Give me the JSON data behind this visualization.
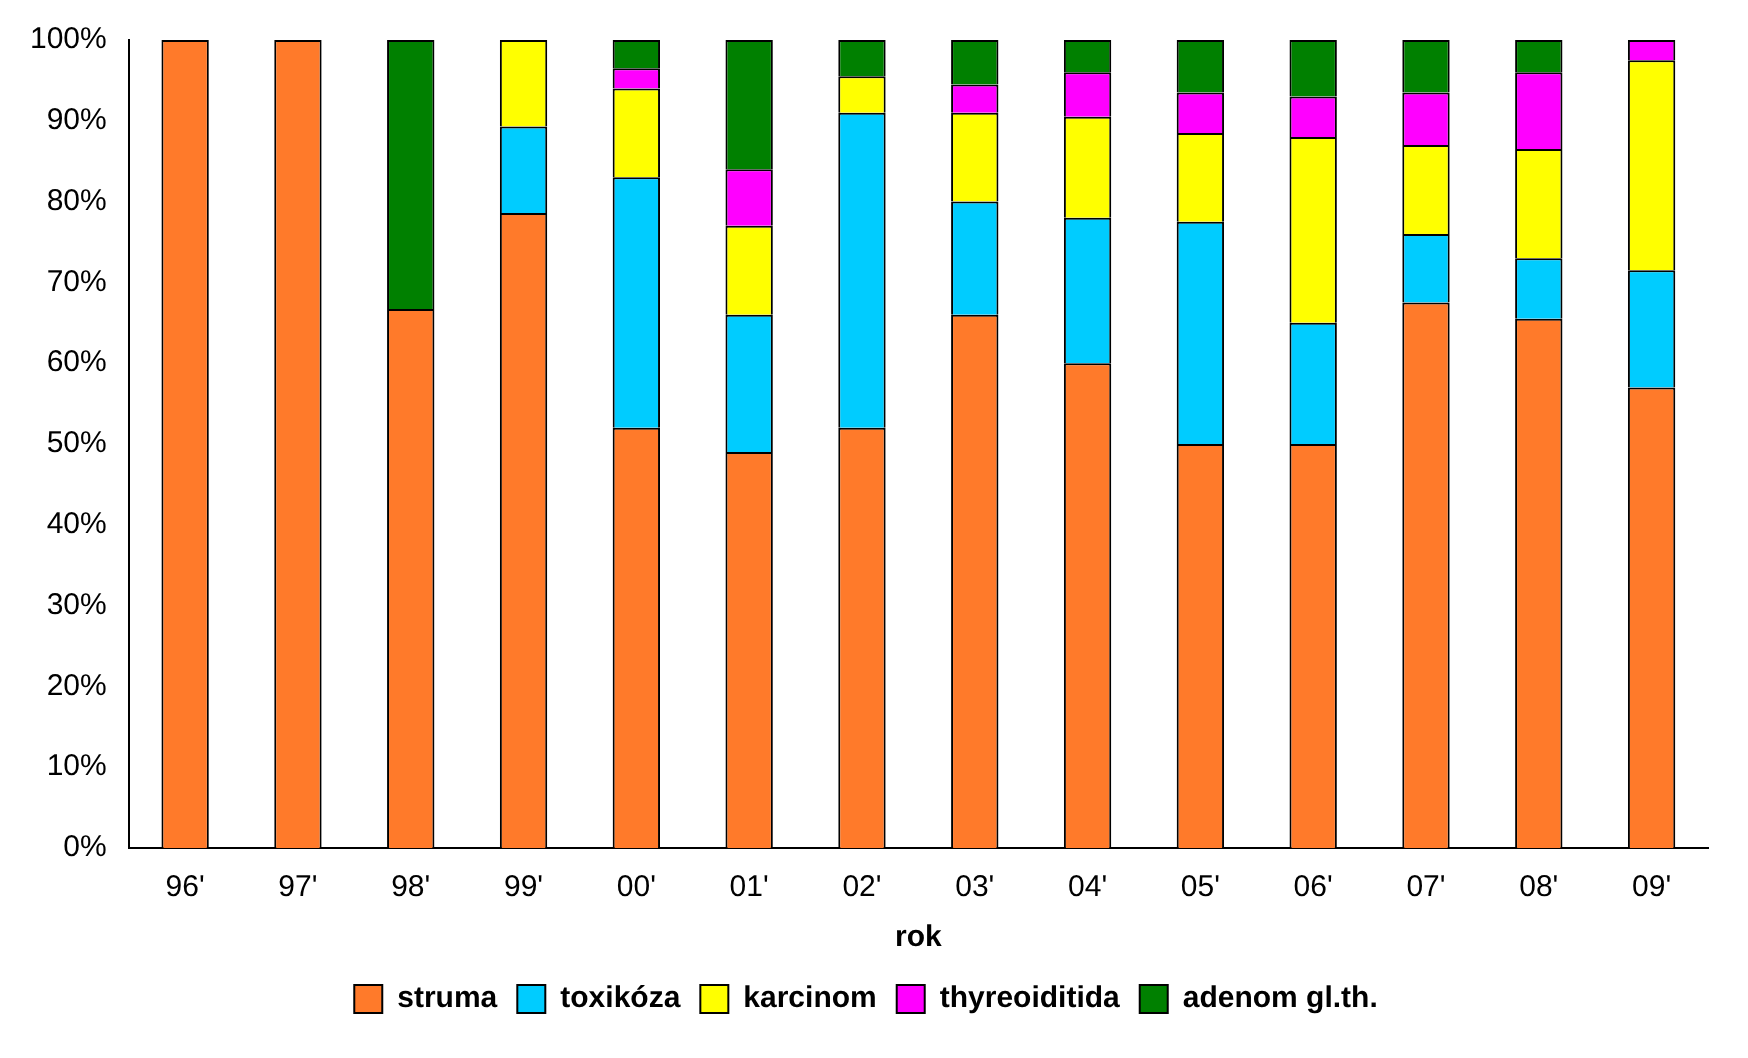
{
  "chart_data": {
    "type": "bar",
    "xlabel": "rok",
    "stacked": true,
    "categories": [
      "96'",
      "97'",
      "98'",
      "99'",
      "00'",
      "01'",
      "02'",
      "03'",
      "04'",
      "05'",
      "06'",
      "07'",
      "08'",
      "09'"
    ],
    "series": [
      {
        "name": "struma",
        "color": "#ff7a2a",
        "values": [
          100,
          100,
          66.7,
          78.6,
          52,
          49,
          52,
          66,
          60,
          50,
          50,
          67.5,
          65.5,
          57
        ]
      },
      {
        "name": "toxikóza",
        "color": "#00ccff",
        "values": [
          0,
          0,
          0,
          10.7,
          31,
          17,
          39,
          14,
          18,
          27.5,
          15,
          8.5,
          7.5,
          14.5
        ]
      },
      {
        "name": "karcinom",
        "color": "#ffff00",
        "values": [
          0,
          0,
          0,
          10.7,
          11,
          11,
          4.5,
          11,
          12.5,
          11,
          23,
          11,
          13.5,
          26
        ]
      },
      {
        "name": "thyreoiditida",
        "color": "#ff00ff",
        "values": [
          0,
          0,
          0,
          0,
          2.5,
          7,
          0,
          3.5,
          5.5,
          5,
          5,
          6.5,
          9.5,
          2.5
        ]
      },
      {
        "name": "adenom gl.th.",
        "color": "#008000",
        "values": [
          0,
          0,
          33.3,
          0,
          3.5,
          16,
          4.5,
          5.5,
          4,
          6.5,
          7,
          6.5,
          4,
          0
        ]
      }
    ],
    "ylim": [
      0,
      100
    ],
    "yticks": [
      {
        "value": 0,
        "label": "0%"
      },
      {
        "value": 10,
        "label": "10%"
      },
      {
        "value": 20,
        "label": "20%"
      },
      {
        "value": 30,
        "label": "30%"
      },
      {
        "value": 40,
        "label": "40%"
      },
      {
        "value": 50,
        "label": "50%"
      },
      {
        "value": 60,
        "label": "60%"
      },
      {
        "value": 70,
        "label": "70%"
      },
      {
        "value": 80,
        "label": "80%"
      },
      {
        "value": 90,
        "label": "90%"
      },
      {
        "value": 100,
        "label": "100%"
      }
    ],
    "grid": false,
    "legend": "bottom"
  }
}
